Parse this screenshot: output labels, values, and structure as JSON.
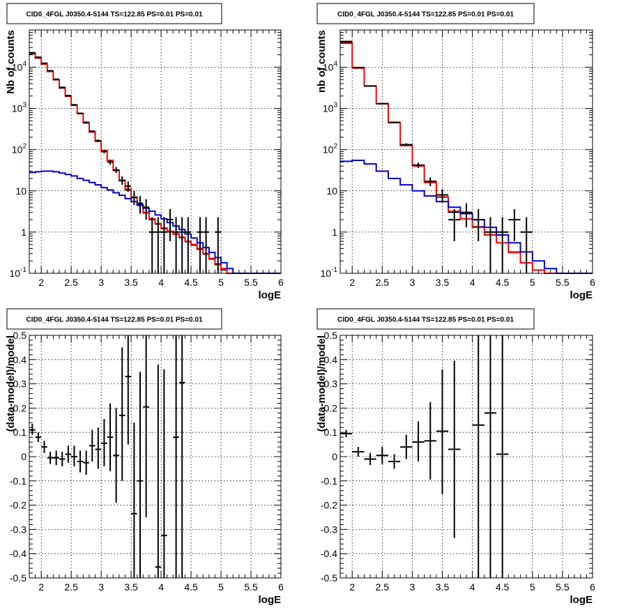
{
  "colors": {
    "data": "#000000",
    "total_model": "#ff0000",
    "source_model": "#0000cc",
    "total_model_dark": "#000000",
    "grid": "#000000"
  },
  "chart_data": [
    {
      "type": "line",
      "title": "CID0_4FGL J0350.4-5144 TS=122.85 PS=0.01 PS=0.01",
      "xlabel": "logE",
      "ylabel": "Nb of counts",
      "xlim": [
        1.8,
        6
      ],
      "ylim": [
        0.1,
        80000
      ],
      "yscale": "log",
      "grid": true,
      "xticks": [
        2,
        2.5,
        3,
        3.5,
        4,
        4.5,
        5,
        5.5,
        6
      ],
      "xtick_labels": [
        "2",
        "2.5",
        "3",
        "3.5",
        "4",
        "4.5",
        "5",
        "5.5",
        "6"
      ],
      "yticks": [
        0.1,
        1,
        10,
        100,
        1000,
        10000
      ],
      "ytick_labels": [
        "10^-1",
        "1",
        "10",
        "10^2",
        "10^3",
        "10^4"
      ],
      "bin_edges": [
        1.8,
        1.9,
        2.0,
        2.1,
        2.2,
        2.3,
        2.4,
        2.5,
        2.6,
        2.7,
        2.8,
        2.9,
        3.0,
        3.1,
        3.2,
        3.3,
        3.4,
        3.5,
        3.6,
        3.7,
        3.8,
        3.9,
        4.0,
        4.1,
        4.2,
        4.3,
        4.4,
        4.5,
        4.6,
        4.7,
        4.8,
        4.9,
        5.0,
        5.1,
        5.2,
        5.3,
        5.4,
        5.5,
        5.6,
        5.7,
        5.8,
        5.9,
        6.0
      ],
      "series": [
        {
          "role": "total_model",
          "values": [
            22000,
            17000,
            12000,
            8000,
            5000,
            3200,
            2000,
            1200,
            750,
            450,
            270,
            160,
            95,
            55,
            32,
            18,
            11,
            7,
            4.5,
            3,
            2.1,
            1.6,
            1.25,
            1.05,
            0.9,
            0.75,
            0.6,
            0.5,
            0.4,
            0.3,
            0.23,
            0.17,
            0.13,
            0.1,
            0.1,
            0.1,
            0.1,
            0.1,
            0.1,
            0.1,
            0.1,
            0.1
          ]
        },
        {
          "role": "total_model_dark",
          "values": [
            21000,
            16500,
            11800,
            7800,
            4900,
            3100,
            1950,
            1180,
            740,
            440,
            265,
            158,
            93,
            54,
            31,
            17.5,
            10.5,
            6.8,
            4.4,
            2.9,
            2.0,
            1.55,
            1.2,
            1.0,
            0.88,
            0.73,
            0.58,
            0.48,
            0.38,
            0.29,
            0.22,
            0.16,
            0.12,
            0.1,
            0.1,
            0.1,
            0.1,
            0.1,
            0.1,
            0.1,
            0.1,
            0.1
          ]
        },
        {
          "role": "source_model",
          "values": [
            28,
            29,
            30,
            30,
            29,
            27,
            25,
            23,
            20,
            18,
            16,
            14,
            12,
            10.5,
            9,
            7.8,
            6.5,
            5.5,
            4.6,
            3.8,
            3.2,
            2.6,
            2.1,
            1.7,
            1.4,
            1.15,
            0.9,
            0.72,
            0.55,
            0.42,
            0.32,
            0.24,
            0.18,
            0.13,
            0.1,
            0.1,
            0.1,
            0.1,
            0.1,
            0.1,
            0.1,
            0.1
          ]
        }
      ],
      "points": [
        {
          "x": 1.85,
          "y": 22500,
          "ylo": 22300,
          "yhi": 22700
        },
        {
          "x": 1.95,
          "y": 17500,
          "ylo": 17300,
          "yhi": 17700
        },
        {
          "x": 2.05,
          "y": 12500,
          "ylo": 12300,
          "yhi": 12700
        },
        {
          "x": 2.15,
          "y": 8200,
          "ylo": 8000,
          "yhi": 8400
        },
        {
          "x": 2.25,
          "y": 5100,
          "ylo": 4950,
          "yhi": 5250
        },
        {
          "x": 2.35,
          "y": 3250,
          "ylo": 3150,
          "yhi": 3350
        },
        {
          "x": 2.45,
          "y": 2050,
          "ylo": 1980,
          "yhi": 2120
        },
        {
          "x": 2.55,
          "y": 1220,
          "ylo": 1160,
          "yhi": 1280
        },
        {
          "x": 2.65,
          "y": 760,
          "ylo": 730,
          "yhi": 790
        },
        {
          "x": 2.75,
          "y": 460,
          "ylo": 440,
          "yhi": 480
        },
        {
          "x": 2.85,
          "y": 280,
          "ylo": 265,
          "yhi": 295
        },
        {
          "x": 2.95,
          "y": 165,
          "ylo": 153,
          "yhi": 177
        },
        {
          "x": 3.05,
          "y": 90,
          "ylo": 81,
          "yhi": 99
        },
        {
          "x": 3.15,
          "y": 50,
          "ylo": 43,
          "yhi": 57
        },
        {
          "x": 3.25,
          "y": 32,
          "ylo": 27,
          "yhi": 38
        },
        {
          "x": 3.35,
          "y": 18,
          "ylo": 14,
          "yhi": 22.5
        },
        {
          "x": 3.45,
          "y": 13,
          "ylo": 9.5,
          "yhi": 17
        },
        {
          "x": 3.55,
          "y": 7,
          "ylo": 4.5,
          "yhi": 10
        },
        {
          "x": 3.65,
          "y": 5,
          "ylo": 2.8,
          "yhi": 7.5
        },
        {
          "x": 3.75,
          "y": 4,
          "ylo": 2.0,
          "yhi": 6.3
        },
        {
          "x": 3.85,
          "y": 1,
          "ylo": 0.1,
          "yhi": 2.3
        },
        {
          "x": 3.95,
          "y": 1,
          "ylo": 0.1,
          "yhi": 2.3
        },
        {
          "x": 4.05,
          "y": 1,
          "ylo": 0.1,
          "yhi": 2.3
        },
        {
          "x": 4.15,
          "y": 2,
          "ylo": 0.6,
          "yhi": 3.6
        },
        {
          "x": 4.25,
          "y": 1,
          "ylo": 0.1,
          "yhi": 2.3
        },
        {
          "x": 4.35,
          "y": 1,
          "ylo": 0.1,
          "yhi": 2.3
        },
        {
          "x": 4.45,
          "y": 1,
          "ylo": 0.1,
          "yhi": 2.3
        },
        {
          "x": 4.65,
          "y": 1,
          "ylo": 0.1,
          "yhi": 2.3
        },
        {
          "x": 4.75,
          "y": 1,
          "ylo": 0.1,
          "yhi": 2.3
        },
        {
          "x": 4.95,
          "y": 1,
          "ylo": 0.1,
          "yhi": 2.3
        }
      ]
    },
    {
      "type": "line",
      "title": "CID0_4FGL J0350.4-5144 TS=122.85 PS=0.01 PS=0.01",
      "xlabel": "logE",
      "ylabel": "nb of counts",
      "xlim": [
        1.8,
        6
      ],
      "ylim": [
        0.1,
        80000
      ],
      "yscale": "log",
      "grid": true,
      "xticks": [
        2,
        2.5,
        3,
        3.5,
        4,
        4.5,
        5,
        5.5,
        6
      ],
      "xtick_labels": [
        "2",
        "2.5",
        "3",
        "3.5",
        "4",
        "4.5",
        "5",
        "5.5",
        "6"
      ],
      "yticks": [
        0.1,
        1,
        10,
        100,
        1000,
        10000
      ],
      "ytick_labels": [
        "10^-1",
        "1",
        "10",
        "10^2",
        "10^3",
        "10^4"
      ],
      "bin_edges": [
        1.8,
        2.0,
        2.2,
        2.4,
        2.6,
        2.8,
        3.0,
        3.2,
        3.4,
        3.6,
        3.8,
        4.0,
        4.2,
        4.4,
        4.6,
        4.8,
        5.0,
        5.2,
        5.4,
        5.6,
        5.8,
        6.0
      ],
      "series": [
        {
          "role": "total_model",
          "values": [
            38000,
            9500,
            3500,
            1300,
            450,
            125,
            40,
            16,
            7,
            3.2,
            2.1,
            1.3,
            0.85,
            0.55,
            0.32,
            0.18,
            0.12,
            0.1,
            0.1,
            0.1,
            0.1
          ]
        },
        {
          "role": "total_model_dark",
          "values": [
            40000,
            9800,
            3500,
            1300,
            460,
            130,
            42,
            16.5,
            7.2,
            3.0,
            2.1,
            1.35,
            0.87,
            0.55,
            0.33,
            0.18,
            0.12,
            0.1,
            0.1,
            0.1,
            0.1
          ]
        },
        {
          "role": "source_model",
          "values": [
            52,
            55,
            45,
            30,
            20,
            14,
            10,
            7.5,
            5.5,
            4,
            2.8,
            2,
            1.3,
            0.85,
            0.55,
            0.33,
            0.2,
            0.13,
            0.1,
            0.1,
            0.1
          ]
        }
      ],
      "points": [
        {
          "x": 1.9,
          "y": 42000,
          "ylo": 41700,
          "yhi": 42300
        },
        {
          "x": 2.1,
          "y": 9800,
          "ylo": 9600,
          "yhi": 10000
        },
        {
          "x": 2.3,
          "y": 3500,
          "ylo": 3440,
          "yhi": 3560
        },
        {
          "x": 2.5,
          "y": 1300,
          "ylo": 1265,
          "yhi": 1335
        },
        {
          "x": 2.7,
          "y": 460,
          "ylo": 440,
          "yhi": 480
        },
        {
          "x": 2.9,
          "y": 132,
          "ylo": 121,
          "yhi": 143
        },
        {
          "x": 3.1,
          "y": 42,
          "ylo": 36,
          "yhi": 48.5
        },
        {
          "x": 3.3,
          "y": 17,
          "ylo": 13,
          "yhi": 21.2
        },
        {
          "x": 3.5,
          "y": 8,
          "ylo": 5.2,
          "yhi": 11
        },
        {
          "x": 3.7,
          "y": 2,
          "ylo": 0.6,
          "yhi": 3.6
        },
        {
          "x": 3.9,
          "y": 3,
          "ylo": 1.3,
          "yhi": 5
        },
        {
          "x": 4.1,
          "y": 2,
          "ylo": 0.6,
          "yhi": 3.6
        },
        {
          "x": 4.3,
          "y": 1,
          "ylo": 0.1,
          "yhi": 2.3
        },
        {
          "x": 4.5,
          "y": 1,
          "ylo": 0.1,
          "yhi": 2.3
        },
        {
          "x": 4.7,
          "y": 2,
          "ylo": 0.6,
          "yhi": 3.6
        },
        {
          "x": 4.9,
          "y": 1,
          "ylo": 0.1,
          "yhi": 2.3
        }
      ]
    },
    {
      "type": "scatter",
      "title": "CID0_4FGL J0350.4-5144 TS=122.85 PS=0.01 PS=0.01",
      "xlabel": "logE",
      "ylabel": "(data-model)/model",
      "xlim": [
        1.8,
        6
      ],
      "ylim": [
        -0.5,
        0.5
      ],
      "yscale": "linear",
      "grid": true,
      "xticks": [
        2,
        2.5,
        3,
        3.5,
        4,
        4.5,
        5,
        5.5,
        6
      ],
      "xtick_labels": [
        "2",
        "2.5",
        "3",
        "3.5",
        "4",
        "4.5",
        "5",
        "5.5",
        "6"
      ],
      "yticks": [
        -0.5,
        -0.4,
        -0.3,
        -0.2,
        -0.1,
        0,
        0.1,
        0.2,
        0.3,
        0.4,
        0.5
      ],
      "ytick_labels": [
        "-0.5",
        "-0.4",
        "-0.3",
        "-0.2",
        "-0.1",
        "0",
        "0.1",
        "0.2",
        "0.3",
        "0.4",
        "0.5"
      ],
      "xerr": 0.05,
      "points": [
        {
          "x": 1.85,
          "y": 0.11,
          "ylo": 0.09,
          "yhi": 0.135
        },
        {
          "x": 1.95,
          "y": 0.08,
          "ylo": 0.06,
          "yhi": 0.1
        },
        {
          "x": 2.05,
          "y": 0.04,
          "ylo": 0.015,
          "yhi": 0.065
        },
        {
          "x": 2.15,
          "y": -0.005,
          "ylo": -0.03,
          "yhi": 0.02
        },
        {
          "x": 2.25,
          "y": -0.005,
          "ylo": -0.035,
          "yhi": 0.025
        },
        {
          "x": 2.35,
          "y": -0.01,
          "ylo": -0.04,
          "yhi": 0.02
        },
        {
          "x": 2.45,
          "y": 0.01,
          "ylo": -0.025,
          "yhi": 0.045
        },
        {
          "x": 2.55,
          "y": 0.0,
          "ylo": -0.04,
          "yhi": 0.045
        },
        {
          "x": 2.65,
          "y": -0.02,
          "ylo": -0.065,
          "yhi": 0.025
        },
        {
          "x": 2.75,
          "y": -0.025,
          "ylo": -0.075,
          "yhi": 0.025
        },
        {
          "x": 2.85,
          "y": 0.045,
          "ylo": -0.02,
          "yhi": 0.11
        },
        {
          "x": 2.95,
          "y": 0.03,
          "ylo": -0.05,
          "yhi": 0.12
        },
        {
          "x": 3.05,
          "y": 0.055,
          "ylo": -0.04,
          "yhi": 0.155
        },
        {
          "x": 3.15,
          "y": 0.08,
          "ylo": -0.06,
          "yhi": 0.22
        },
        {
          "x": 3.25,
          "y": 0.005,
          "ylo": -0.19,
          "yhi": 0.2
        },
        {
          "x": 3.35,
          "y": 0.17,
          "ylo": -0.1,
          "yhi": 0.45
        },
        {
          "x": 3.45,
          "y": 0.33,
          "ylo": 0.05,
          "yhi": 0.5
        },
        {
          "x": 3.55,
          "y": -0.235,
          "ylo": -0.5,
          "yhi": 0.14
        },
        {
          "x": 3.65,
          "y": -0.1,
          "ylo": -0.5,
          "yhi": 0.35
        },
        {
          "x": 3.75,
          "y": 0.205,
          "ylo": -0.25,
          "yhi": 0.5
        },
        {
          "x": 3.95,
          "y": -0.455,
          "ylo": -0.5,
          "yhi": 0.38
        },
        {
          "x": 4.05,
          "y": -0.325,
          "ylo": -0.5,
          "yhi": 0.36
        },
        {
          "x": 4.25,
          "y": 0.08,
          "ylo": -0.5,
          "yhi": 0.5
        },
        {
          "x": 4.35,
          "y": 0.305,
          "ylo": -0.5,
          "yhi": 0.5
        }
      ]
    },
    {
      "type": "scatter",
      "title": "CID0_4FGL J0350.4-5144 TS=122.85 PS=0.01 PS=0.01",
      "xlabel": "logE",
      "ylabel": "(data-model)/model",
      "xlim": [
        1.8,
        6
      ],
      "ylim": [
        -0.5,
        0.5
      ],
      "yscale": "linear",
      "grid": true,
      "xticks": [
        2,
        2.5,
        3,
        3.5,
        4,
        4.5,
        5,
        5.5,
        6
      ],
      "xtick_labels": [
        "2",
        "2.5",
        "3",
        "3.5",
        "4",
        "4.5",
        "5",
        "5.5",
        "6"
      ],
      "yticks": [
        -0.5,
        -0.4,
        -0.3,
        -0.2,
        -0.1,
        0,
        0.1,
        0.2,
        0.3,
        0.4,
        0.5
      ],
      "ytick_labels": [
        "-0.5",
        "-0.4",
        "-0.3",
        "-0.2",
        "-0.1",
        "0",
        "0.1",
        "0.2",
        "0.3",
        "0.4",
        "0.5"
      ],
      "xerr": 0.1,
      "points": [
        {
          "x": 1.9,
          "y": 0.095,
          "ylo": 0.08,
          "yhi": 0.11
        },
        {
          "x": 2.1,
          "y": 0.02,
          "ylo": 0.0,
          "yhi": 0.04
        },
        {
          "x": 2.3,
          "y": -0.01,
          "ylo": -0.035,
          "yhi": 0.015
        },
        {
          "x": 2.5,
          "y": 0.005,
          "ylo": -0.03,
          "yhi": 0.04
        },
        {
          "x": 2.7,
          "y": -0.02,
          "ylo": -0.05,
          "yhi": 0.01
        },
        {
          "x": 2.9,
          "y": 0.04,
          "ylo": -0.01,
          "yhi": 0.09
        },
        {
          "x": 3.1,
          "y": 0.06,
          "ylo": -0.02,
          "yhi": 0.145
        },
        {
          "x": 3.3,
          "y": 0.065,
          "ylo": -0.095,
          "yhi": 0.225
        },
        {
          "x": 3.5,
          "y": 0.105,
          "ylo": -0.155,
          "yhi": 0.36
        },
        {
          "x": 3.7,
          "y": 0.03,
          "ylo": -0.335,
          "yhi": 0.395
        },
        {
          "x": 4.1,
          "y": 0.13,
          "ylo": -0.5,
          "yhi": 0.5
        },
        {
          "x": 4.3,
          "y": 0.18,
          "ylo": -0.5,
          "yhi": 0.5
        },
        {
          "x": 4.5,
          "y": 0.01,
          "ylo": -0.5,
          "yhi": 0.5
        }
      ]
    }
  ]
}
